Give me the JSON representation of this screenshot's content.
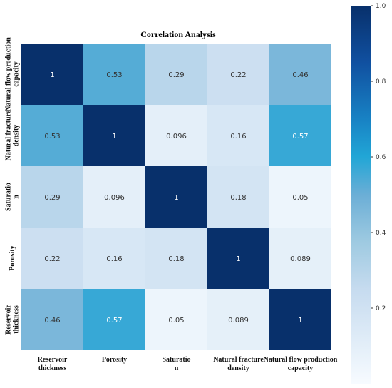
{
  "chart_data": {
    "type": "heatmap",
    "title": "Correlation Analysis",
    "row_labels": [
      [
        "Natural flow production",
        "capacity"
      ],
      [
        "Natural fracture",
        "density"
      ],
      [
        "Saturatio",
        "n"
      ],
      [
        "Porosity"
      ],
      [
        "Reservoir",
        "thickness"
      ]
    ],
    "col_labels": [
      [
        "Reservoir",
        "thickness"
      ],
      [
        "Porosity"
      ],
      [
        "Saturatio",
        "n"
      ],
      [
        "Natural fracture",
        "density"
      ],
      [
        "Natural flow production",
        "capacity"
      ]
    ],
    "values": [
      [
        1,
        0.53,
        0.29,
        0.22,
        0.46
      ],
      [
        0.53,
        1,
        0.096,
        0.16,
        0.57
      ],
      [
        0.29,
        0.096,
        1,
        0.18,
        0.05
      ],
      [
        0.22,
        0.16,
        0.18,
        1,
        0.089
      ],
      [
        0.46,
        0.57,
        0.05,
        0.089,
        1
      ]
    ],
    "colormap": "Blues",
    "colorbar": {
      "range": [
        0,
        1.0
      ],
      "ticks": [
        0.2,
        0.4,
        0.6,
        0.8,
        1.0
      ],
      "tick_labels": [
        "0.2",
        "0.4",
        "0.6",
        "0.8",
        "1.0"
      ]
    }
  }
}
